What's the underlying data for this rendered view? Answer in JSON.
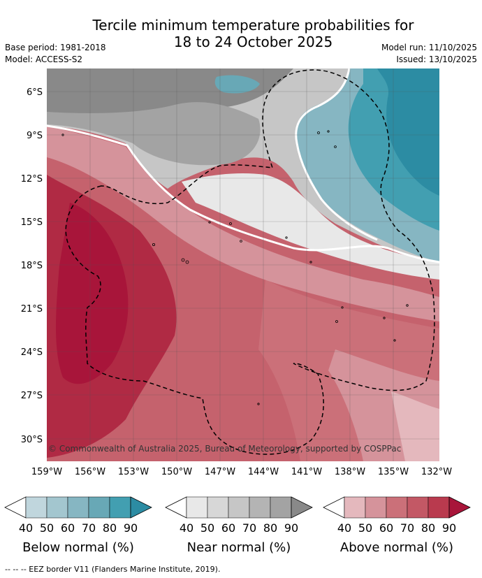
{
  "title_line1": "Tercile minimum temperature probabilities for",
  "title_line2": "18 to 24 October 2025",
  "base_period": "Base period: 1981-2018",
  "model": "Model: ACCESS-S2",
  "model_run": "Model run: 11/10/2025",
  "issued": "Issued: 13/10/2025",
  "lat_labels": [
    "6°S",
    "9°S",
    "12°S",
    "15°S",
    "18°S",
    "21°S",
    "24°S",
    "27°S",
    "30°S"
  ],
  "lon_labels": [
    "159°W",
    "156°W",
    "153°W",
    "150°W",
    "147°W",
    "144°W",
    "141°W",
    "138°W",
    "135°W",
    "132°W"
  ],
  "copyright": "© Commonwealth of Australia 2025, Bureau of Meteorology, supported by COSPPac",
  "legend": [
    {
      "name": "below",
      "label": "Below normal (%)",
      "ticks": [
        "40",
        "50",
        "60",
        "70",
        "80",
        "90"
      ],
      "colors": [
        "#c0d6dd",
        "#a3c6cf",
        "#86b6c2",
        "#68a8b6",
        "#429fb1",
        "#2c8ca3"
      ]
    },
    {
      "name": "near",
      "label": "Near normal (%)",
      "ticks": [
        "40",
        "50",
        "60",
        "70",
        "80",
        "90"
      ],
      "colors": [
        "#e8e8e8",
        "#d7d7d7",
        "#c6c6c6",
        "#b4b4b4",
        "#a3a3a3",
        "#898989"
      ]
    },
    {
      "name": "above",
      "label": "Above normal (%)",
      "ticks": [
        "40",
        "50",
        "60",
        "70",
        "80",
        "90"
      ],
      "colors": [
        "#e4b8bd",
        "#d5939b",
        "#cb7079",
        "#c35865",
        "#b93a4e",
        "#a8153a"
      ]
    }
  ],
  "footer": "-- -- -- EEZ border V11 (Flanders Marine Institute, 2019)."
}
